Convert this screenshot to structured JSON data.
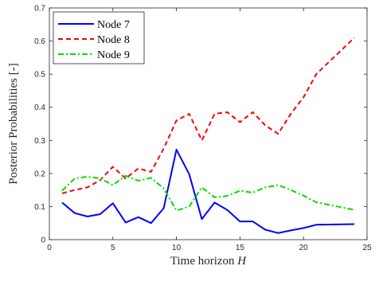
{
  "chart_data": {
    "type": "line",
    "title": "",
    "xlabel": "Time horizon ",
    "xlabel_symbol": "H",
    "ylabel": "Posterior Probabilities [-]",
    "xlim": [
      0,
      25
    ],
    "ylim": [
      0,
      0.7
    ],
    "xticks": [
      0,
      5,
      10,
      15,
      20,
      25
    ],
    "yticks": [
      0,
      0.1,
      0.2,
      0.3,
      0.4,
      0.5,
      0.6,
      0.7
    ],
    "xtick_labels": [
      "0",
      "5",
      "10",
      "15",
      "20",
      "25"
    ],
    "ytick_labels": [
      "0",
      "0.1",
      "0.2",
      "0.3",
      "0.4",
      "0.5",
      "0.6",
      "0.7"
    ],
    "grid": false,
    "legend_position": "top-left",
    "series": [
      {
        "name": "Node 7",
        "color": "#0000ff",
        "dash": "solid",
        "x": [
          1,
          2,
          3,
          4,
          5,
          6,
          7,
          8,
          9,
          10,
          11,
          12,
          13,
          14,
          15,
          16,
          17,
          18,
          19,
          20,
          21,
          24
        ],
        "y": [
          0.112,
          0.08,
          0.07,
          0.077,
          0.11,
          0.052,
          0.068,
          0.05,
          0.095,
          0.272,
          0.198,
          0.062,
          0.112,
          0.09,
          0.055,
          0.055,
          0.03,
          0.02,
          0.028,
          0.035,
          0.045,
          0.047
        ]
      },
      {
        "name": "Node 8",
        "color": "#ff0000",
        "dash": "dashed",
        "x": [
          1,
          2,
          3,
          4,
          5,
          6,
          7,
          8,
          9,
          10,
          11,
          12,
          13,
          14,
          15,
          16,
          17,
          18,
          19,
          20,
          21,
          24
        ],
        "y": [
          0.14,
          0.15,
          0.158,
          0.18,
          0.22,
          0.185,
          0.215,
          0.205,
          0.275,
          0.36,
          0.38,
          0.3,
          0.38,
          0.385,
          0.355,
          0.385,
          0.345,
          0.32,
          0.38,
          0.43,
          0.5,
          0.61
        ]
      },
      {
        "name": "Node 9",
        "color": "#00dd00",
        "dash": "dashdot",
        "x": [
          1,
          2,
          3,
          4,
          5,
          6,
          7,
          8,
          9,
          10,
          11,
          12,
          13,
          14,
          15,
          16,
          17,
          18,
          19,
          20,
          21,
          24
        ],
        "y": [
          0.148,
          0.185,
          0.19,
          0.185,
          0.165,
          0.193,
          0.178,
          0.187,
          0.155,
          0.088,
          0.1,
          0.158,
          0.128,
          0.132,
          0.148,
          0.142,
          0.158,
          0.165,
          0.15,
          0.133,
          0.113,
          0.09
        ]
      }
    ]
  }
}
